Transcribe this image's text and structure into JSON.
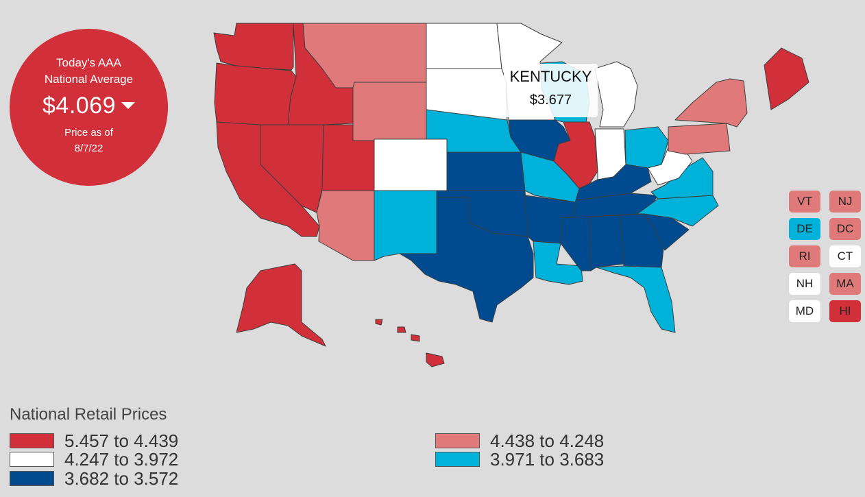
{
  "badge": {
    "line1": "Today's AAA",
    "line2": "National Average",
    "price": "$4.069",
    "asof_line1": "Price as of",
    "asof_line2": "8/7/22"
  },
  "tooltip": {
    "state": "KENTUCKY",
    "price": "$3.677"
  },
  "colors": {
    "tier1": "#d1303a",
    "tier2": "#e07a7a",
    "tier3": "#ffffff",
    "tier4": "#00b1d9",
    "tier5": "#004a8f"
  },
  "legend": {
    "title": "National Retail Prices",
    "items": [
      {
        "range": "5.457 to 4.439",
        "tier": "tier1"
      },
      {
        "range": "4.438 to 4.248",
        "tier": "tier2"
      },
      {
        "range": "4.247 to 3.972",
        "tier": "tier3"
      },
      {
        "range": "3.971 to 3.683",
        "tier": "tier4"
      },
      {
        "range": "3.682 to 3.572",
        "tier": "tier5"
      }
    ]
  },
  "small_states": [
    {
      "abbr": "VT",
      "tier": "tier2"
    },
    {
      "abbr": "NJ",
      "tier": "tier2"
    },
    {
      "abbr": "DE",
      "tier": "tier4"
    },
    {
      "abbr": "DC",
      "tier": "tier2"
    },
    {
      "abbr": "RI",
      "tier": "tier2"
    },
    {
      "abbr": "CT",
      "tier": "tier3"
    },
    {
      "abbr": "NH",
      "tier": "tier3"
    },
    {
      "abbr": "MA",
      "tier": "tier2"
    },
    {
      "abbr": "MD",
      "tier": "tier3"
    },
    {
      "abbr": "HI",
      "tier": "tier1"
    }
  ],
  "states": [
    {
      "name": "Washington",
      "tier": "tier1"
    },
    {
      "name": "Oregon",
      "tier": "tier1"
    },
    {
      "name": "California",
      "tier": "tier1"
    },
    {
      "name": "Nevada",
      "tier": "tier1"
    },
    {
      "name": "Idaho",
      "tier": "tier1"
    },
    {
      "name": "Utah",
      "tier": "tier1"
    },
    {
      "name": "Arizona",
      "tier": "tier2"
    },
    {
      "name": "Montana",
      "tier": "tier2"
    },
    {
      "name": "Wyoming",
      "tier": "tier2"
    },
    {
      "name": "Colorado",
      "tier": "tier3"
    },
    {
      "name": "New Mexico",
      "tier": "tier4"
    },
    {
      "name": "North Dakota",
      "tier": "tier3"
    },
    {
      "name": "South Dakota",
      "tier": "tier3"
    },
    {
      "name": "Nebraska",
      "tier": "tier4"
    },
    {
      "name": "Kansas",
      "tier": "tier5"
    },
    {
      "name": "Oklahoma",
      "tier": "tier5"
    },
    {
      "name": "Texas",
      "tier": "tier5"
    },
    {
      "name": "Minnesota",
      "tier": "tier3"
    },
    {
      "name": "Iowa",
      "tier": "tier5"
    },
    {
      "name": "Missouri",
      "tier": "tier4"
    },
    {
      "name": "Arkansas",
      "tier": "tier5"
    },
    {
      "name": "Louisiana",
      "tier": "tier4"
    },
    {
      "name": "Wisconsin",
      "tier": "tier4"
    },
    {
      "name": "Illinois",
      "tier": "tier1"
    },
    {
      "name": "Michigan",
      "tier": "tier3"
    },
    {
      "name": "Indiana",
      "tier": "tier3"
    },
    {
      "name": "Ohio",
      "tier": "tier4"
    },
    {
      "name": "Kentucky",
      "tier": "tier5"
    },
    {
      "name": "Tennessee",
      "tier": "tier5"
    },
    {
      "name": "Mississippi",
      "tier": "tier5"
    },
    {
      "name": "Alabama",
      "tier": "tier5"
    },
    {
      "name": "Georgia",
      "tier": "tier5"
    },
    {
      "name": "Florida",
      "tier": "tier4"
    },
    {
      "name": "South Carolina",
      "tier": "tier5"
    },
    {
      "name": "North Carolina",
      "tier": "tier4"
    },
    {
      "name": "Virginia",
      "tier": "tier4"
    },
    {
      "name": "West Virginia",
      "tier": "tier3"
    },
    {
      "name": "Pennsylvania",
      "tier": "tier2"
    },
    {
      "name": "New York",
      "tier": "tier2"
    },
    {
      "name": "Maine",
      "tier": "tier1"
    },
    {
      "name": "Alaska",
      "tier": "tier1"
    },
    {
      "name": "Hawaii",
      "tier": "tier1"
    }
  ]
}
